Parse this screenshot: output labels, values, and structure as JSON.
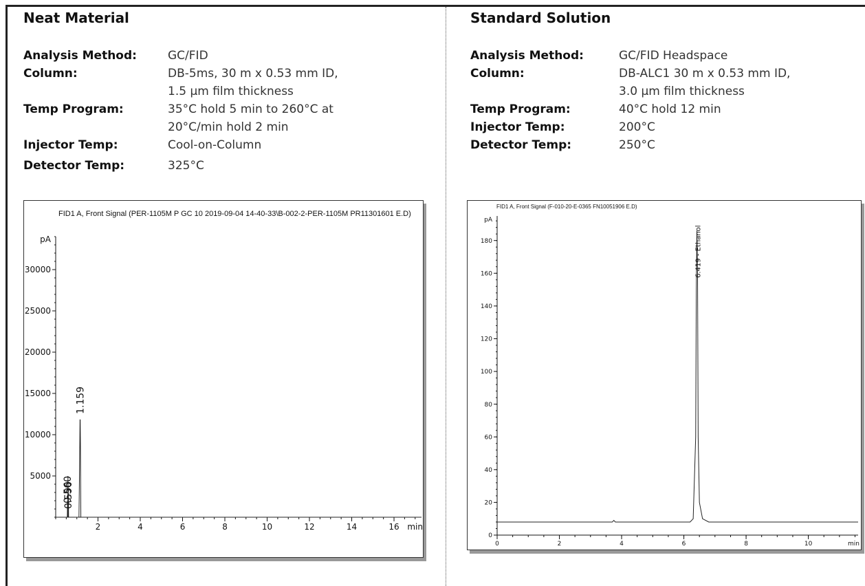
{
  "left": {
    "title": "Neat Material",
    "rows": [
      {
        "label": "Analysis Method:",
        "lines": [
          "GC/FID"
        ]
      },
      {
        "label": "Column:",
        "lines": [
          "DB-5ms, 30 m x 0.53 mm ID,",
          "1.5 µm film thickness"
        ]
      },
      {
        "label": "Temp Program:",
        "lines": [
          "35°C hold 5 min to 260°C at",
          "20°C/min hold 2 min"
        ]
      },
      {
        "label": "Injector Temp:",
        "lines": [
          "Cool-on-Column"
        ]
      },
      {
        "label": "Detector Temp:",
        "lines": [
          "325°C"
        ]
      }
    ]
  },
  "right": {
    "title": "Standard Solution",
    "rows": [
      {
        "label": "Analysis Method:",
        "lines": [
          "GC/FID Headspace"
        ]
      },
      {
        "label": "Column:",
        "lines": [
          "DB-ALC1 30 m x 0.53 mm ID,",
          "3.0 µm film thickness"
        ]
      },
      {
        "label": "Temp Program:",
        "lines": [
          "40°C hold 12 min"
        ]
      },
      {
        "label": "Injector Temp:",
        "lines": [
          "200°C"
        ]
      },
      {
        "label": "Detector Temp:",
        "lines": [
          "250°C"
        ]
      }
    ]
  },
  "chart_data": [
    {
      "type": "line",
      "title": "FID1 A, Front Signal (PER-1105M P GC 10 2019-09-04 14-40-33\\B-002-2-PER-1105M PR11301601 E.D)",
      "ylabel": "pA",
      "xlabel": "min",
      "xlim": [
        0,
        17.3
      ],
      "ylim": [
        0,
        34000
      ],
      "xticks": [
        2,
        4,
        6,
        8,
        10,
        12,
        14,
        16
      ],
      "yticks": [
        5000,
        10000,
        15000,
        20000,
        25000,
        30000
      ],
      "series": [
        {
          "x": [
            0,
            0.55,
            0.56,
            0.57,
            0.58,
            0.59,
            0.6,
            0.61,
            0.62,
            1.1,
            1.13,
            1.15,
            1.159,
            1.17,
            1.19,
            1.22,
            17.3
          ],
          "values": [
            0,
            0,
            2000,
            0,
            5000,
            0,
            3000,
            0,
            0,
            0,
            6000,
            11800,
            11800,
            9000,
            0,
            0,
            0
          ]
        }
      ],
      "peak_labels": [
        {
          "x": 1.159,
          "text": "1.159"
        },
        {
          "x": 0.59,
          "text": "0.590"
        },
        {
          "x": 0.56,
          "text": "0.560"
        }
      ]
    },
    {
      "type": "line",
      "title": "FID1 A, Front Signal (F-010-20-E-0365 FN10051906 E.D)",
      "ylabel": "pA",
      "xlabel": "min",
      "xlim": [
        0,
        11.6
      ],
      "ylim": [
        0,
        195
      ],
      "xticks": [
        0,
        2,
        4,
        6,
        8,
        10
      ],
      "yticks": [
        0,
        20,
        40,
        60,
        80,
        100,
        120,
        140,
        160,
        180
      ],
      "series": [
        {
          "x": [
            0,
            3.7,
            3.75,
            3.8,
            6.2,
            6.3,
            6.38,
            6.4,
            6.419,
            6.44,
            6.46,
            6.5,
            6.6,
            6.8,
            11.6
          ],
          "values": [
            8,
            8,
            9,
            8,
            8,
            10,
            60,
            150,
            186,
            160,
            60,
            20,
            10,
            8,
            8
          ]
        }
      ],
      "peak_labels": [
        {
          "x": 6.419,
          "text": "6.419 - Ethanol"
        }
      ]
    }
  ]
}
